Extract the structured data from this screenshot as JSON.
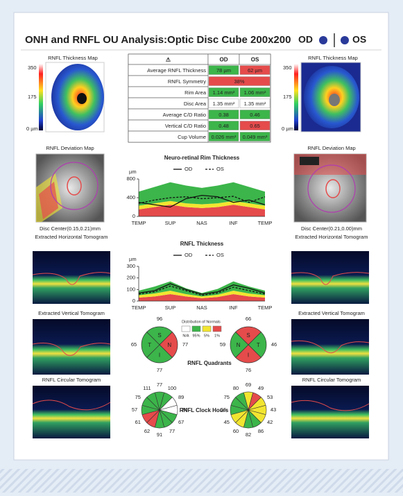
{
  "header": {
    "title": "ONH and RNFL OU Analysis:Optic Disc Cube 200x200",
    "od": "OD",
    "os": "OS"
  },
  "images": {
    "od": {
      "thickness_map": "RNFL Thickness Map",
      "scale": [
        "350",
        "175",
        "0 µm"
      ],
      "deviation_map": "RNFL Deviation Map",
      "disc_center": "Disc Center(0.15,0.21)mm",
      "horizontal": "Extracted Horizontal Tomogram",
      "vertical": "Extracted Vertical Tomogram",
      "circular": "RNFL Circular Tomogram"
    },
    "os": {
      "thickness_map": "RNFL Thickness Map",
      "scale": [
        "350",
        "175",
        "0 µm"
      ],
      "deviation_map": "RNFL Deviation Map",
      "disc_center": "Disc Center(0.21,0.00)mm",
      "horizontal": "Extracted Horizontal Tomogram",
      "vertical": "Extracted Vertical Tomogram",
      "circular": "RNFL Circular Tomogram"
    }
  },
  "table": {
    "header": [
      "⚠",
      "OD",
      "OS"
    ],
    "rows": [
      {
        "label": "Average RNFL Thickness",
        "cells": [
          {
            "text": "78 µm",
            "color": "#3cb54a"
          },
          {
            "text": "62 µm",
            "color": "#e54b4b"
          }
        ]
      },
      {
        "label": "RNFL Symmetry",
        "cells": [
          {
            "text": "38%",
            "color": "#e54b4b"
          }
        ]
      },
      {
        "label": "Rim Area",
        "cells": [
          {
            "text": "1.14 mm²",
            "color": "#3cb54a"
          },
          {
            "text": "1.06 mm²",
            "color": "#3cb54a"
          }
        ]
      },
      {
        "label": "Disc Area",
        "cells": [
          {
            "text": "1.35 mm²",
            "color": "#ffffff"
          },
          {
            "text": "1.35 mm²",
            "color": "#ffffff"
          }
        ]
      },
      {
        "label": "Average C/D Ratio",
        "cells": [
          {
            "text": "0.38",
            "color": "#3cb54a"
          },
          {
            "text": "0.46",
            "color": "#3cb54a"
          }
        ]
      },
      {
        "label": "Vertical C/D Ratio",
        "cells": [
          {
            "text": "0.48",
            "color": "#3cb54a"
          },
          {
            "text": "0.65",
            "color": "#e54b4b"
          }
        ]
      },
      {
        "label": "Cup Volume",
        "cells": [
          {
            "text": "0.026 mm³",
            "color": "#3cb54a"
          },
          {
            "text": "0.049 mm³",
            "color": "#3cb54a"
          }
        ]
      }
    ]
  },
  "charts": [
    {
      "type": "line",
      "title": "Neuro-retinal Rim Thickness",
      "unit": "µm",
      "categories": [
        "TEMP",
        null,
        "SUP",
        null,
        "NAS",
        null,
        "INF",
        null,
        "TEMP"
      ],
      "ylim": [
        0,
        800
      ],
      "yticks": [
        0,
        400,
        800
      ],
      "bands": [
        {
          "color": "#e54b4b",
          "values": [
            150,
            200,
            250,
            200,
            180,
            200,
            250,
            200,
            150
          ]
        },
        {
          "color": "#f2e530",
          "values": [
            80,
            80,
            80,
            80,
            80,
            80,
            80,
            80,
            80
          ]
        },
        {
          "color": "#3cb54a",
          "values": [
            300,
            350,
            400,
            380,
            350,
            380,
            400,
            350,
            300
          ]
        }
      ],
      "series": [
        {
          "name": "OD",
          "color": "#111111",
          "dash": false,
          "values": [
            300,
            250,
            200,
            380,
            450,
            420,
            300,
            350,
            250
          ]
        },
        {
          "name": "OS",
          "color": "#111111",
          "dash": true,
          "values": [
            280,
            350,
            400,
            420,
            380,
            400,
            430,
            300,
            420
          ]
        }
      ]
    },
    {
      "type": "line",
      "title": "RNFL Thickness",
      "unit": "µm",
      "categories": [
        "TEMP",
        null,
        "SUP",
        null,
        "NAS",
        null,
        "INF",
        null,
        "TEMP"
      ],
      "ylim": [
        0,
        300
      ],
      "yticks": [
        0,
        100,
        200,
        300
      ],
      "bands": [
        {
          "color": "#e54b4b",
          "values": [
            30,
            40,
            60,
            40,
            25,
            35,
            60,
            40,
            30
          ]
        },
        {
          "color": "#f2e530",
          "values": [
            20,
            25,
            30,
            20,
            15,
            20,
            30,
            25,
            20
          ]
        },
        {
          "color": "#3cb54a",
          "values": [
            40,
            60,
            80,
            50,
            30,
            50,
            80,
            60,
            40
          ]
        }
      ],
      "series": [
        {
          "name": "OD",
          "color": "#111111",
          "dash": false,
          "values": [
            70,
            90,
            150,
            100,
            60,
            80,
            140,
            110,
            70
          ]
        },
        {
          "name": "OS",
          "color": "#111111",
          "dash": true,
          "values": [
            60,
            80,
            130,
            90,
            50,
            70,
            120,
            90,
            60
          ]
        }
      ]
    }
  ],
  "legend": {
    "title": "Distribution of Normals",
    "items": [
      {
        "label": "N/A",
        "color": "#ffffff"
      },
      {
        "label": "95%",
        "color": "#3cb54a"
      },
      {
        "label": "5%",
        "color": "#f2e530"
      },
      {
        "label": "1%",
        "color": "#e54b4b"
      }
    ]
  },
  "quadrants": {
    "title": "RNFL Quadrants",
    "od": [
      {
        "letter": "S",
        "value": 96,
        "color": "#3cb54a"
      },
      {
        "letter": "N",
        "value": 77,
        "color": "#e54b4b"
      },
      {
        "letter": "I",
        "value": 77,
        "color": "#3cb54a"
      },
      {
        "letter": "T",
        "value": 65,
        "color": "#3cb54a"
      }
    ],
    "os": [
      {
        "letter": "S",
        "value": 66,
        "color": "#e54b4b"
      },
      {
        "letter": "T",
        "value": 46,
        "color": "#3cb54a"
      },
      {
        "letter": "I",
        "value": 76,
        "color": "#e54b4b"
      },
      {
        "letter": "N",
        "value": 59,
        "color": "#3cb54a"
      }
    ]
  },
  "clock_hours": {
    "title": "RNFL Clock Hours",
    "od": {
      "values": [
        77,
        100,
        89,
        74,
        67,
        77,
        91,
        62,
        61,
        57,
        75,
        111
      ],
      "colors": [
        "#3cb54a",
        "#3cb54a",
        "#ffffff",
        "#ffffff",
        "#3cb54a",
        "#3cb54a",
        "#3cb54a",
        "#e54b4b",
        "#e54b4b",
        "#3cb54a",
        "#3cb54a",
        "#3cb54a"
      ]
    },
    "os": {
      "values": [
        69,
        49,
        53,
        43,
        42,
        86,
        82,
        60,
        45,
        56,
        75,
        80
      ],
      "colors": [
        "#f2e530",
        "#e54b4b",
        "#f2e530",
        "#f2e530",
        "#f2e530",
        "#3cb54a",
        "#3cb54a",
        "#f2e530",
        "#f2e530",
        "#3cb54a",
        "#3cb54a",
        "#3cb54a"
      ]
    }
  }
}
